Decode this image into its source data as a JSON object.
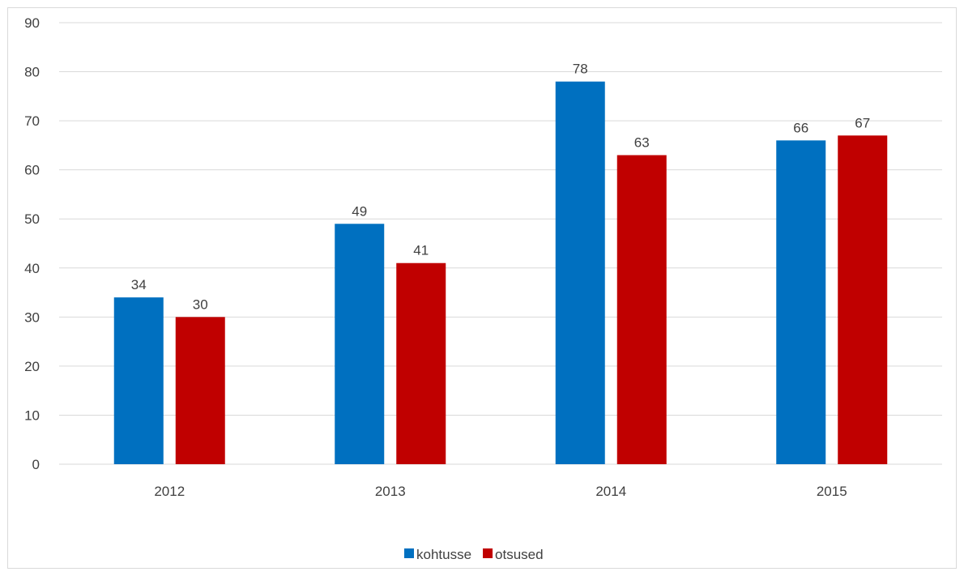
{
  "chart_data": {
    "type": "bar",
    "categories": [
      "2012",
      "2013",
      "2014",
      "2015"
    ],
    "series": [
      {
        "name": "kohtusse",
        "color": "#0070C0",
        "values": [
          34,
          49,
          78,
          66
        ]
      },
      {
        "name": "otsused",
        "color": "#C00000",
        "values": [
          30,
          41,
          63,
          67
        ]
      }
    ],
    "ylim": [
      0,
      90
    ],
    "yticks": [
      "0",
      "10",
      "20",
      "30",
      "40",
      "50",
      "60",
      "70",
      "80",
      "90"
    ],
    "grid": true,
    "legend_position": "bottom",
    "data_labels": true
  }
}
